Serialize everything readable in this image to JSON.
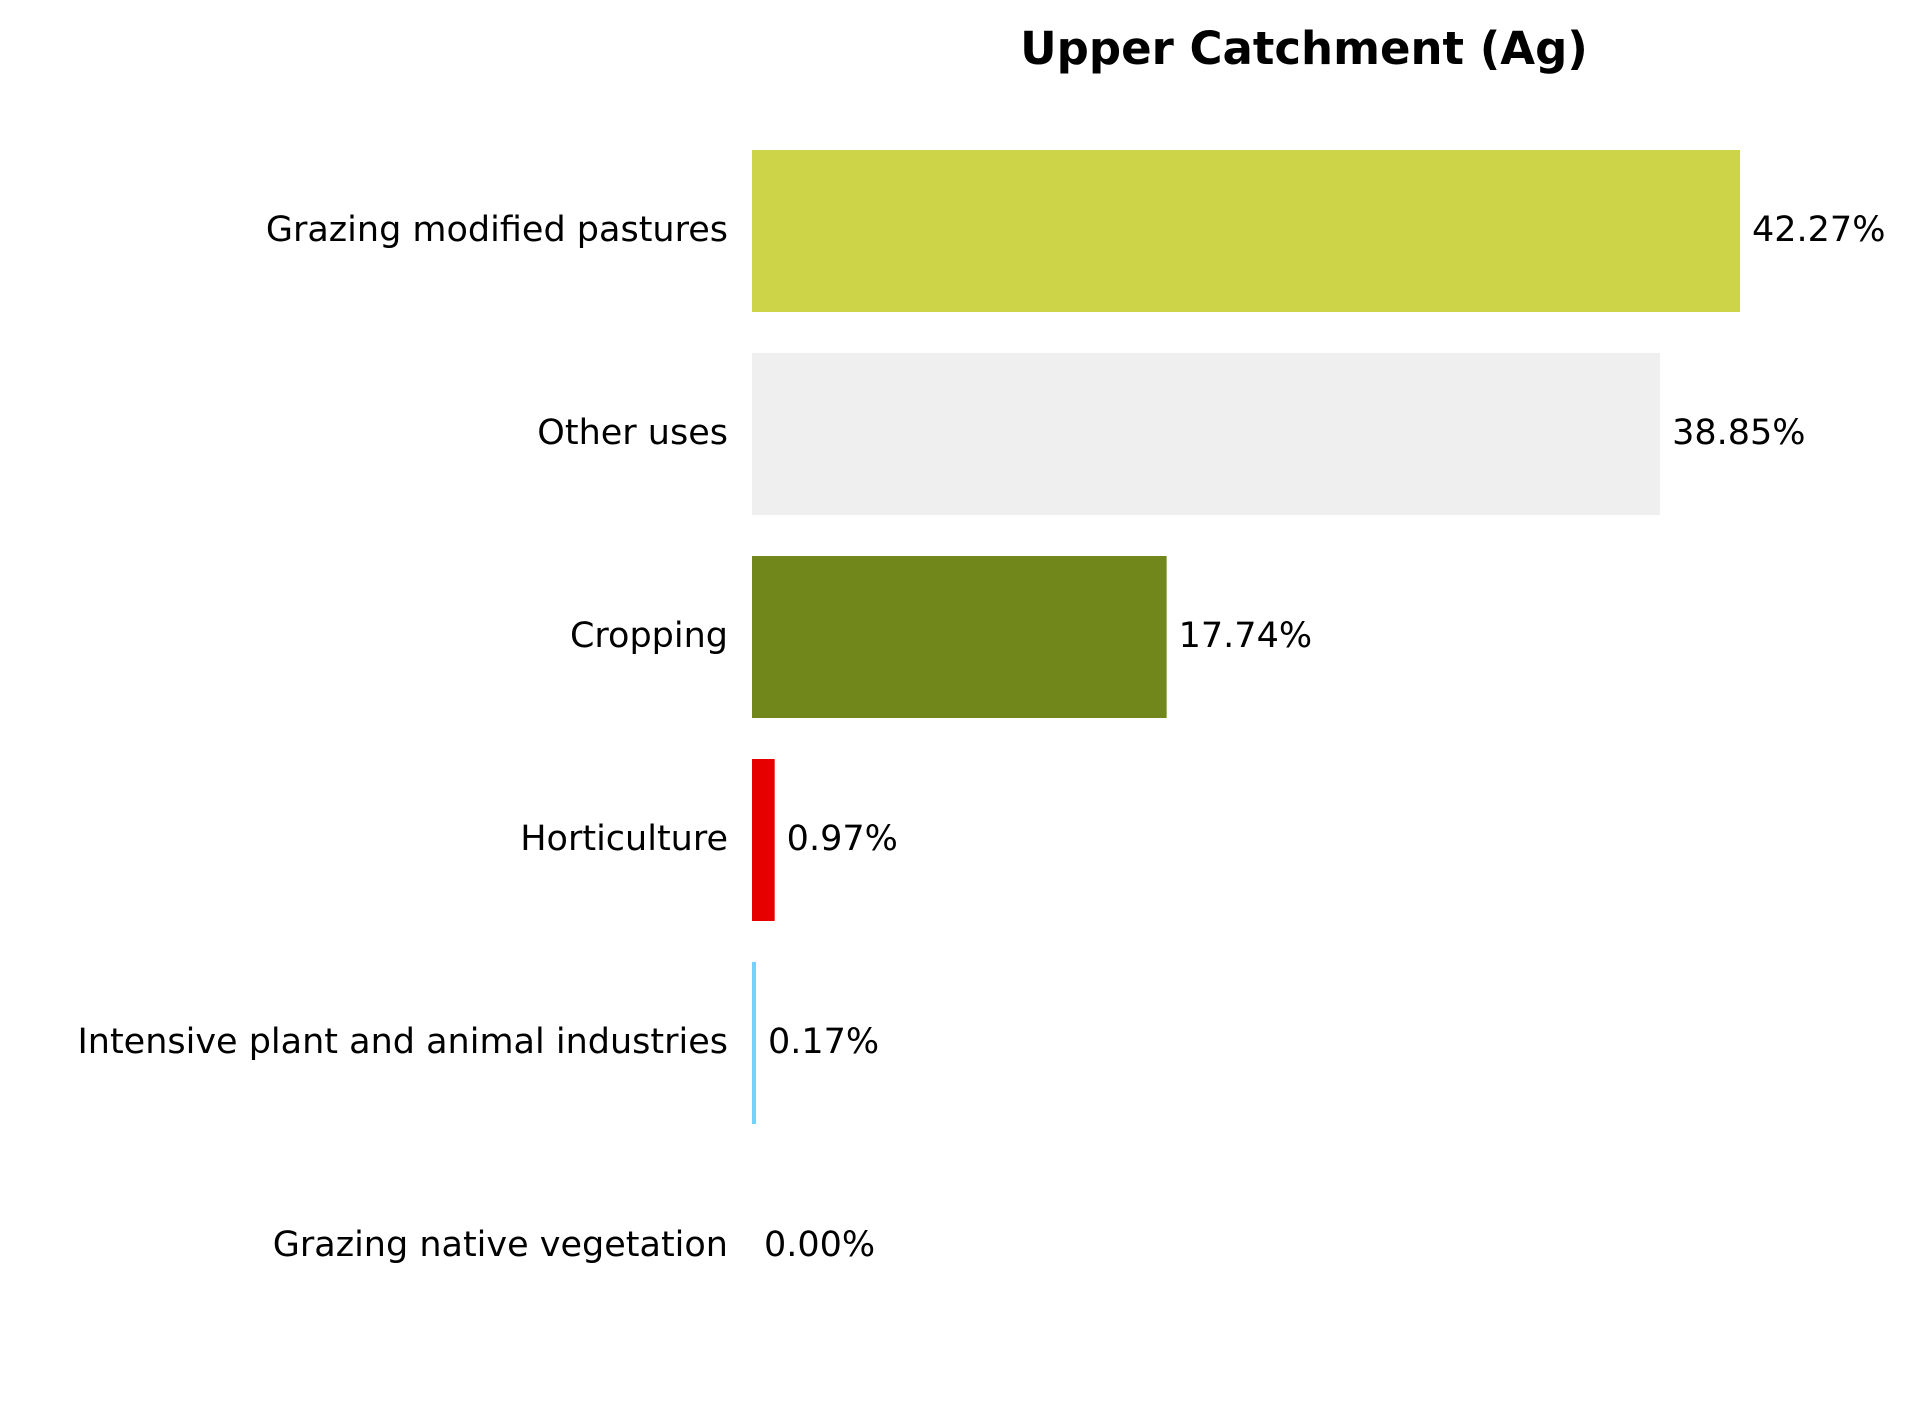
{
  "chart_data": {
    "type": "bar",
    "orientation": "horizontal",
    "title": "Upper Catchment (Ag)",
    "xlabel": "",
    "ylabel": "",
    "categories": [
      "Grazing modified pastures",
      "Other uses",
      "Cropping",
      "Horticulture",
      "Intensive plant and animal industries",
      "Grazing native vegetation"
    ],
    "values": [
      42.27,
      38.85,
      17.74,
      0.97,
      0.17,
      0.0
    ],
    "value_labels": [
      "42.27%",
      "38.85%",
      "17.74%",
      "0.97%",
      "0.17%",
      "0.00%"
    ],
    "colors": [
      "#cdd447",
      "#efefef",
      "#71871c",
      "#e60000",
      "#73d2fc",
      "#c8a87a"
    ],
    "xlim": [
      0,
      42.27
    ],
    "grid": false,
    "legend": "none",
    "axes_visible": false
  }
}
